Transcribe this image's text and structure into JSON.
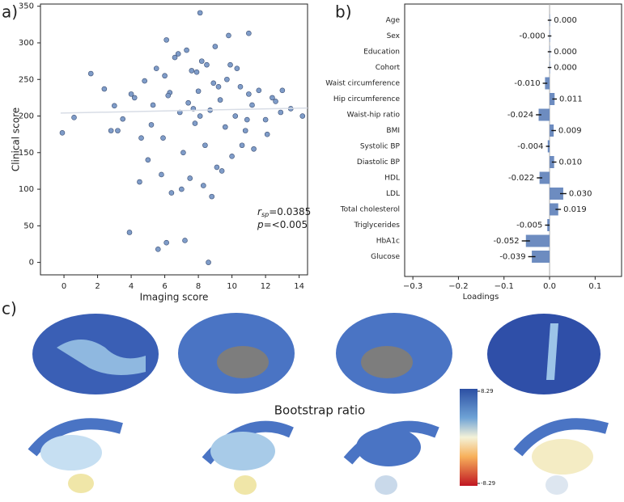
{
  "chart_data": [
    {
      "type": "scatter",
      "panel_label": "a)",
      "xlabel": "Imaging score",
      "ylabel": "Clinical score",
      "x": [
        8.1,
        8.6,
        3.9,
        5.6,
        6.1,
        7.2,
        -0.1,
        0.6,
        11.0,
        9.8,
        6.1,
        1.6,
        2.4,
        3.0,
        3.5,
        4.2,
        4.8,
        5.2,
        5.5,
        5.9,
        6.3,
        6.6,
        6.9,
        7.1,
        7.4,
        7.6,
        7.8,
        8.0,
        8.2,
        8.4,
        8.7,
        8.9,
        9.1,
        9.3,
        9.6,
        9.9,
        10.2,
        10.5,
        10.8,
        11.2,
        11.6,
        12.0,
        12.4,
        12.9,
        13.5,
        14.2,
        4.5,
        5.0,
        5.8,
        6.4,
        7.0,
        7.5,
        8.3,
        8.8,
        9.4,
        10.0,
        10.6,
        11.3,
        12.1,
        3.2,
        4.0,
        6.0,
        6.8,
        7.3,
        7.9,
        8.5,
        9.0,
        9.7,
        10.3,
        11.0,
        2.8,
        13.0,
        5.3,
        9.2,
        7.7,
        6.2,
        8.1,
        10.9,
        4.6,
        12.6
      ],
      "y": [
        341,
        0,
        41,
        18,
        27,
        30,
        177,
        198,
        313,
        310,
        304,
        258,
        237,
        214,
        196,
        225,
        248,
        188,
        265,
        170,
        232,
        280,
        205,
        150,
        218,
        262,
        190,
        234,
        275,
        160,
        208,
        245,
        130,
        222,
        185,
        270,
        200,
        240,
        180,
        215,
        235,
        195,
        225,
        205,
        210,
        200,
        110,
        140,
        120,
        95,
        100,
        115,
        105,
        90,
        125,
        145,
        160,
        155,
        175,
        180,
        230,
        255,
        285,
        290,
        260,
        270,
        295,
        250,
        265,
        230,
        180,
        235,
        215,
        240,
        210,
        228,
        200,
        195,
        170,
        220
      ],
      "color": "#7f9cc8",
      "fit": {
        "x": [
          -0.2,
          14.5
        ],
        "y": [
          204,
          211
        ],
        "color": "#d8dde6"
      },
      "annotation": {
        "r_label": "r",
        "r_sub": "sp",
        "r_value": "=0.0385",
        "p_label": "p",
        "p_value": "=<0.005"
      },
      "xlim": [
        -1.4,
        14.5
      ],
      "ylim": [
        -17,
        353
      ],
      "xticks": [
        0,
        2,
        4,
        6,
        8,
        10,
        12,
        14
      ],
      "yticks": [
        0,
        50,
        100,
        150,
        200,
        250,
        300,
        350
      ]
    },
    {
      "type": "hbar",
      "panel_label": "b)",
      "xlabel": "Loadings",
      "categories": [
        "Age",
        "Sex",
        "Education",
        "Cohort",
        "Waist circumference",
        "Hip circumference",
        "Waist-hip ratio",
        "BMI",
        "Systolic BP",
        "Diastolic BP",
        "HDL",
        "LDL",
        "Total cholesterol",
        "Triglycerides",
        "HbA1c",
        "Glucose"
      ],
      "values": [
        0.0,
        -0.0,
        0.0,
        0.0,
        -0.01,
        0.011,
        -0.024,
        0.009,
        -0.004,
        0.01,
        -0.022,
        0.03,
        0.019,
        -0.005,
        -0.052,
        -0.039
      ],
      "value_labels": [
        "0.000",
        "-0.000",
        "0.000",
        "0.000",
        "-0.010",
        "0.011",
        "-0.024",
        "0.009",
        "-0.004",
        "0.010",
        "-0.022",
        "0.030",
        "0.019",
        "-0.005",
        "-0.052",
        "-0.039"
      ],
      "errors": [
        0.004,
        0.004,
        0.004,
        0.004,
        0.005,
        0.005,
        0.006,
        0.005,
        0.004,
        0.005,
        0.006,
        0.007,
        0.006,
        0.005,
        0.009,
        0.008
      ],
      "color": "#6d8cc0",
      "xlim": [
        -0.318,
        0.158
      ],
      "xticks": [
        {
          "value": -0.3,
          "label": "−0.3"
        },
        {
          "value": -0.2,
          "label": "−0.2"
        },
        {
          "value": -0.1,
          "label": "−0.1"
        },
        {
          "value": 0,
          "label": "0.0"
        },
        0.1
      ]
    },
    {
      "type": "brain-map",
      "panel_label": "c)",
      "colorbar_label": "Bootstrap ratio",
      "colorbar_ticks": [
        {
          "value": 8.29,
          "label": "8.29"
        },
        {
          "value": -8.29,
          "label": "-8.29"
        }
      ]
    }
  ]
}
